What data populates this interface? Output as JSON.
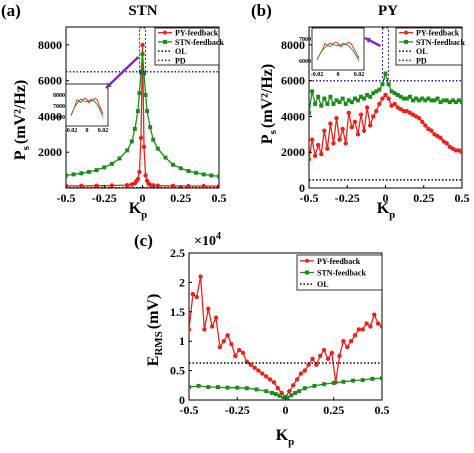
{
  "chart_data": [
    {
      "type": "line",
      "panel_label": "(a)",
      "title": "STN",
      "xlabel": "K",
      "xlabel_sub": "p",
      "ylabel": "P",
      "ylabel_sub": "s",
      "ylabel_unit": "(mV²/Hz)",
      "xlim": [
        -0.5,
        0.5
      ],
      "ylim": [
        0,
        9000
      ],
      "x_ticks": [
        -0.5,
        -0.25,
        0,
        0.25,
        0.5
      ],
      "x_tick_labels": [
        "-0.5",
        "-0.25",
        "0",
        "0.25",
        "0.5"
      ],
      "y_ticks": [
        2000,
        4000,
        6000,
        8000
      ],
      "y_tick_labels": [
        "2000",
        "4000",
        "6000",
        "8000"
      ],
      "legend": {
        "placement": "top-right",
        "entries": [
          "PY-feedback",
          "STN-feedback",
          "OL",
          "PD"
        ]
      },
      "series": [
        {
          "name": "PY-feedback",
          "color": "#e8231f",
          "style": "line-dot",
          "x": [
            -0.5,
            -0.4,
            -0.3,
            -0.2,
            -0.1,
            -0.07,
            -0.05,
            -0.04,
            -0.03,
            -0.02,
            -0.01,
            0,
            0.01,
            0.02,
            0.03,
            0.04,
            0.05,
            0.07,
            0.1,
            0.2,
            0.3,
            0.4,
            0.5
          ],
          "values": [
            120,
            120,
            130,
            140,
            160,
            200,
            260,
            380,
            500,
            900,
            2800,
            8000,
            2300,
            700,
            400,
            250,
            180,
            150,
            130,
            120,
            110,
            110,
            100
          ]
        },
        {
          "name": "STN-feedback",
          "color": "#1e8a1e",
          "style": "line-square",
          "x": [
            -0.5,
            -0.45,
            -0.4,
            -0.35,
            -0.3,
            -0.25,
            -0.2,
            -0.15,
            -0.1,
            -0.07,
            -0.05,
            -0.03,
            -0.02,
            -0.01,
            0,
            0.01,
            0.02,
            0.03,
            0.05,
            0.07,
            0.1,
            0.15,
            0.2,
            0.25,
            0.3,
            0.35,
            0.4,
            0.45,
            0.5
          ],
          "values": [
            700,
            760,
            820,
            900,
            1000,
            1150,
            1350,
            1650,
            2100,
            2600,
            3300,
            4300,
            5300,
            6500,
            7500,
            6400,
            5200,
            4300,
            3400,
            2700,
            2200,
            1700,
            1300,
            1100,
            950,
            850,
            760,
            700,
            650
          ]
        },
        {
          "name": "OL",
          "color": "#000000",
          "style": "dotted",
          "x": [
            -0.5,
            0.5
          ],
          "values": [
            20,
            20
          ]
        },
        {
          "name": "PD",
          "color": "#1f1fb4",
          "style": "dotted",
          "x": [
            -0.5,
            0.5
          ],
          "values": [
            6500,
            6500
          ]
        }
      ],
      "inset": {
        "x_tick_labels": [
          "-0.02",
          "0",
          "0.02"
        ],
        "y_tick_labels": [
          "6000",
          "7000",
          "8000"
        ]
      }
    },
    {
      "type": "line",
      "panel_label": "(b)",
      "title": "PY",
      "xlabel": "K",
      "xlabel_sub": "p",
      "ylabel": "P",
      "ylabel_sub": "s",
      "ylabel_unit": "(mV²/Hz)",
      "xlim": [
        -0.5,
        0.5
      ],
      "ylim": [
        0,
        9000
      ],
      "x_ticks": [
        -0.5,
        -0.25,
        0,
        0.25,
        0.5
      ],
      "x_tick_labels": [
        "-0.5",
        "-0.25",
        "0",
        "0.25",
        "0.5"
      ],
      "y_ticks": [
        0,
        2000,
        4000,
        6000,
        8000
      ],
      "y_tick_labels": [
        "0",
        "2000",
        "4000",
        "6000",
        "8000"
      ],
      "legend": {
        "placement": "top-right",
        "entries": [
          "PY-feedback",
          "STN-feedback",
          "OL",
          "PD"
        ]
      },
      "series": [
        {
          "name": "PY-feedback",
          "color": "#e8231f",
          "style": "line-dot",
          "x": [
            -0.5,
            -0.48,
            -0.46,
            -0.44,
            -0.42,
            -0.4,
            -0.38,
            -0.36,
            -0.34,
            -0.32,
            -0.3,
            -0.28,
            -0.26,
            -0.24,
            -0.22,
            -0.2,
            -0.18,
            -0.16,
            -0.14,
            -0.12,
            -0.1,
            -0.08,
            -0.06,
            -0.04,
            -0.02,
            0,
            0.02,
            0.04,
            0.06,
            0.08,
            0.1,
            0.12,
            0.14,
            0.16,
            0.18,
            0.2,
            0.22,
            0.24,
            0.26,
            0.28,
            0.3,
            0.32,
            0.34,
            0.36,
            0.38,
            0.4,
            0.42,
            0.44,
            0.46,
            0.48,
            0.5
          ],
          "values": [
            1600,
            2700,
            1800,
            2400,
            1900,
            3200,
            2200,
            3600,
            2500,
            3900,
            2700,
            3300,
            2500,
            4200,
            3400,
            3700,
            3000,
            4100,
            3200,
            4500,
            3500,
            4000,
            4300,
            4700,
            5000,
            5200,
            5000,
            4600,
            4700,
            4500,
            4400,
            4300,
            4300,
            4200,
            4100,
            4000,
            3900,
            3700,
            3500,
            3300,
            3200,
            3000,
            2900,
            2800,
            2600,
            2500,
            2300,
            2200,
            2100,
            2100,
            2000
          ]
        },
        {
          "name": "STN-feedback",
          "color": "#1e8a1e",
          "style": "line-square",
          "x": [
            -0.5,
            -0.48,
            -0.46,
            -0.44,
            -0.42,
            -0.4,
            -0.38,
            -0.36,
            -0.34,
            -0.32,
            -0.3,
            -0.28,
            -0.26,
            -0.24,
            -0.22,
            -0.2,
            -0.18,
            -0.16,
            -0.14,
            -0.12,
            -0.1,
            -0.08,
            -0.06,
            -0.04,
            -0.02,
            0,
            0.02,
            0.04,
            0.06,
            0.08,
            0.1,
            0.12,
            0.14,
            0.16,
            0.18,
            0.2,
            0.22,
            0.24,
            0.26,
            0.28,
            0.3,
            0.32,
            0.34,
            0.36,
            0.38,
            0.4,
            0.42,
            0.44,
            0.46,
            0.48,
            0.5
          ],
          "values": [
            4200,
            5400,
            4700,
            5100,
            4600,
            5000,
            4700,
            5100,
            4700,
            4900,
            4800,
            5000,
            4700,
            4900,
            4800,
            5000,
            4900,
            5100,
            5000,
            5200,
            5100,
            5300,
            5400,
            5500,
            5800,
            6400,
            5800,
            5400,
            5300,
            5200,
            5100,
            5000,
            5000,
            5100,
            4900,
            5000,
            4900,
            5000,
            4900,
            5000,
            4900,
            4900,
            5000,
            4800,
            4900,
            4900,
            4800,
            4900,
            4800,
            4900,
            4800
          ]
        },
        {
          "name": "OL",
          "color": "#000000",
          "style": "dotted",
          "x": [
            -0.5,
            0.5
          ],
          "values": [
            450,
            450
          ]
        },
        {
          "name": "PD",
          "color": "#1f1fb4",
          "style": "dotted",
          "x": [
            -0.5,
            0.5
          ],
          "values": [
            6000,
            6000
          ]
        }
      ],
      "inset": {
        "x_tick_labels": [
          "-0.02",
          "0",
          "0.02"
        ],
        "y_tick_labels": [
          "6000",
          "7000"
        ]
      }
    },
    {
      "type": "line",
      "panel_label": "(c)",
      "title": "",
      "scale_label": "×10",
      "scale_exp": "4",
      "xlabel": "K",
      "xlabel_sub": "p",
      "ylabel": "E",
      "ylabel_sub": "RMS",
      "ylabel_unit": "(mV)",
      "xlim": [
        -0.5,
        0.5
      ],
      "ylim": [
        0,
        2.5
      ],
      "x_ticks": [
        -0.5,
        -0.25,
        0,
        0.25,
        0.5
      ],
      "x_tick_labels": [
        "-0.5",
        "-0.25",
        "0",
        "0.25",
        "0.5"
      ],
      "y_ticks": [
        0,
        0.5,
        1,
        1.5,
        2,
        2.5
      ],
      "y_tick_labels": [
        "0",
        "0.5",
        "1",
        "1.5",
        "2",
        "2.5"
      ],
      "legend": {
        "placement": "top-right",
        "entries": [
          "PY-feedback",
          "STN-feedback",
          "OL"
        ]
      },
      "series": [
        {
          "name": "PY-feedback",
          "color": "#e8231f",
          "style": "line-dot",
          "x": [
            -0.5,
            -0.48,
            -0.46,
            -0.44,
            -0.42,
            -0.4,
            -0.38,
            -0.36,
            -0.34,
            -0.32,
            -0.3,
            -0.28,
            -0.26,
            -0.24,
            -0.22,
            -0.2,
            -0.18,
            -0.16,
            -0.14,
            -0.12,
            -0.1,
            -0.08,
            -0.06,
            -0.04,
            -0.02,
            0,
            0.02,
            0.04,
            0.06,
            0.08,
            0.1,
            0.12,
            0.14,
            0.16,
            0.18,
            0.2,
            0.22,
            0.24,
            0.26,
            0.28,
            0.3,
            0.32,
            0.34,
            0.36,
            0.38,
            0.4,
            0.42,
            0.44,
            0.46,
            0.48,
            0.5
          ],
          "values": [
            1.2,
            1.8,
            1.75,
            2.1,
            1.2,
            1.55,
            1.25,
            1.4,
            0.9,
            1.0,
            1.1,
            0.95,
            0.75,
            0.85,
            0.8,
            0.65,
            0.6,
            0.55,
            0.5,
            0.45,
            0.4,
            0.35,
            0.3,
            0.2,
            0.12,
            0.05,
            0.15,
            0.25,
            0.35,
            0.45,
            0.5,
            0.6,
            0.7,
            0.6,
            0.75,
            0.85,
            0.7,
            0.8,
            0.3,
            0.75,
            1.0,
            0.9,
            1.0,
            1.1,
            1.2,
            1.2,
            1.3,
            1.25,
            1.45,
            1.3,
            1.25
          ]
        },
        {
          "name": "STN-feedback",
          "color": "#1e8a1e",
          "style": "line-square",
          "x": [
            -0.5,
            -0.45,
            -0.4,
            -0.35,
            -0.3,
            -0.25,
            -0.2,
            -0.15,
            -0.1,
            -0.07,
            -0.05,
            -0.03,
            -0.01,
            0,
            0.01,
            0.03,
            0.05,
            0.07,
            0.1,
            0.15,
            0.2,
            0.25,
            0.3,
            0.35,
            0.4,
            0.45,
            0.5
          ],
          "values": [
            0.22,
            0.24,
            0.22,
            0.22,
            0.21,
            0.21,
            0.2,
            0.18,
            0.15,
            0.12,
            0.1,
            0.07,
            0.03,
            0.01,
            0.04,
            0.08,
            0.12,
            0.15,
            0.2,
            0.24,
            0.27,
            0.29,
            0.31,
            0.33,
            0.34,
            0.36,
            0.37
          ]
        },
        {
          "name": "OL",
          "color": "#000000",
          "style": "dotted",
          "x": [
            -0.5,
            0.5
          ],
          "values": [
            0.63,
            0.63
          ]
        }
      ]
    }
  ]
}
